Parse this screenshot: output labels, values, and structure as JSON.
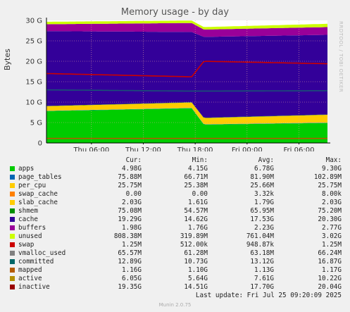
{
  "chart_data": {
    "type": "area",
    "title": "Memory usage - by day",
    "ylabel": "Bytes",
    "vendor_label": "RRDTOOL / TOBI OETIKER",
    "y_ticks": [
      "0",
      "5 G",
      "10 G",
      "15 G",
      "20 G",
      "25 G",
      "30 G"
    ],
    "y_tick_values": [
      0,
      5,
      10,
      15,
      20,
      25,
      30
    ],
    "ylim": [
      0,
      30
    ],
    "x_ticks": [
      "Thu 06:00",
      "Thu 12:00",
      "Thu 18:00",
      "Fri 00:00",
      "Fri 06:00"
    ],
    "x_tick_values": [
      6,
      12,
      18,
      24,
      30
    ],
    "xlim": [
      0.8,
      33.3
    ],
    "x_unit_note": "",
    "grid": true,
    "colors": {
      "background": "#f0f0f0",
      "plot_bg": "#ffffff",
      "grid": "#e0a0a0",
      "axis": "#000000"
    },
    "stack": [
      {
        "name": "apps",
        "color": "#00cc00",
        "x": [
          0.8,
          17.6,
          19.0,
          33.3
        ],
        "values": [
          7.8,
          8.5,
          4.5,
          4.9
        ]
      },
      {
        "name": "page_tables",
        "color": "#0066b3",
        "x": [
          0.8,
          33.3
        ],
        "values": [
          0.07,
          0.07
        ]
      },
      {
        "name": "per_cpu",
        "color": "#ffcc00",
        "x": [
          0.8,
          33.3
        ],
        "values": [
          0.03,
          0.03
        ]
      },
      {
        "name": "swap_cache",
        "color": "#ff8000",
        "x": [
          0.8,
          33.3
        ],
        "values": [
          0.0,
          0.0
        ]
      },
      {
        "name": "slab_cache",
        "color": "#ffcc00",
        "x": [
          0.8,
          17.6,
          19.0,
          33.3
        ],
        "values": [
          1.1,
          1.3,
          1.5,
          1.9
        ]
      },
      {
        "name": "shmem",
        "color": "#008f00",
        "x": [
          0.8,
          33.3
        ],
        "values": [
          0.07,
          0.07
        ]
      },
      {
        "name": "cache",
        "color": "#330099",
        "x": [
          0.8,
          17.6,
          19.0,
          33.3
        ],
        "values": [
          18.3,
          17.2,
          19.8,
          19.5
        ]
      },
      {
        "name": "buffers",
        "color": "#990099",
        "x": [
          0.8,
          17.6,
          19.0,
          33.3
        ],
        "values": [
          1.7,
          2.2,
          1.8,
          1.9
        ]
      },
      {
        "name": "unused",
        "color": "#ccff00",
        "x": [
          0.8,
          17.6,
          19.0,
          33.3
        ],
        "values": [
          0.6,
          0.6,
          0.6,
          0.8
        ]
      }
    ],
    "lines": [
      {
        "name": "committed",
        "color": "#1a5276",
        "x": [
          0.8,
          17.6,
          19.0,
          33.3
        ],
        "values": [
          13.0,
          12.7,
          12.7,
          12.8
        ]
      },
      {
        "name": "inactive",
        "color": "#cc0000",
        "x": [
          0.8,
          17.6,
          19.0,
          33.3
        ],
        "values": [
          17.0,
          16.2,
          20.0,
          19.4
        ]
      },
      {
        "name": "mapped",
        "color": "#b35a00",
        "x": [
          0.8,
          33.3
        ],
        "values": [
          1.1,
          1.1
        ]
      }
    ],
    "legend_headers": {
      "cur": "Cur:",
      "min": "Min:",
      "avg": "Avg:",
      "max": "Max:"
    },
    "legend": [
      {
        "name": "apps",
        "color": "#00cc00",
        "cur": "4.98G",
        "min": "4.15G",
        "avg": "6.78G",
        "max": "9.30G"
      },
      {
        "name": "page_tables",
        "color": "#0066b3",
        "cur": "75.88M",
        "min": "66.71M",
        "avg": "81.90M",
        "max": "102.89M"
      },
      {
        "name": "per_cpu",
        "color": "#ffcc00",
        "cur": "25.75M",
        "min": "25.38M",
        "avg": "25.66M",
        "max": "25.75M"
      },
      {
        "name": "swap_cache",
        "color": "#ff8000",
        "cur": "0.00",
        "min": "0.00",
        "avg": "3.32k",
        "max": "8.00k"
      },
      {
        "name": "slab_cache",
        "color": "#ffcc00",
        "cur": "2.03G",
        "min": "1.61G",
        "avg": "1.79G",
        "max": "2.03G"
      },
      {
        "name": "shmem",
        "color": "#008f00",
        "cur": "75.08M",
        "min": "54.57M",
        "avg": "65.95M",
        "max": "75.20M"
      },
      {
        "name": "cache",
        "color": "#330099",
        "cur": "19.29G",
        "min": "14.62G",
        "avg": "17.53G",
        "max": "20.30G"
      },
      {
        "name": "buffers",
        "color": "#990099",
        "cur": "1.98G",
        "min": "1.76G",
        "avg": "2.23G",
        "max": "2.77G"
      },
      {
        "name": "unused",
        "color": "#ccff00",
        "cur": "808.38M",
        "min": "319.89M",
        "avg": "761.04M",
        "max": "3.02G"
      },
      {
        "name": "swap",
        "color": "#cc0000",
        "cur": "1.25M",
        "min": "512.00k",
        "avg": "948.87k",
        "max": "1.25M"
      },
      {
        "name": "vmalloc_used",
        "color": "#808080",
        "cur": "65.57M",
        "min": "61.28M",
        "avg": "63.18M",
        "max": "66.24M"
      },
      {
        "name": "committed",
        "color": "#006666",
        "cur": "12.89G",
        "min": "10.73G",
        "avg": "13.12G",
        "max": "16.87G"
      },
      {
        "name": "mapped",
        "color": "#b35a00",
        "cur": "1.16G",
        "min": "1.10G",
        "avg": "1.13G",
        "max": "1.17G"
      },
      {
        "name": "active",
        "color": "#b38f00",
        "cur": "6.05G",
        "min": "5.64G",
        "avg": "7.61G",
        "max": "10.22G"
      },
      {
        "name": "inactive",
        "color": "#990000",
        "cur": "19.35G",
        "min": "14.51G",
        "avg": "17.70G",
        "max": "20.04G"
      }
    ],
    "last_update": "Last update: Fri Jul 25 09:20:09 2025",
    "footer": "Munin 2.0.75"
  }
}
